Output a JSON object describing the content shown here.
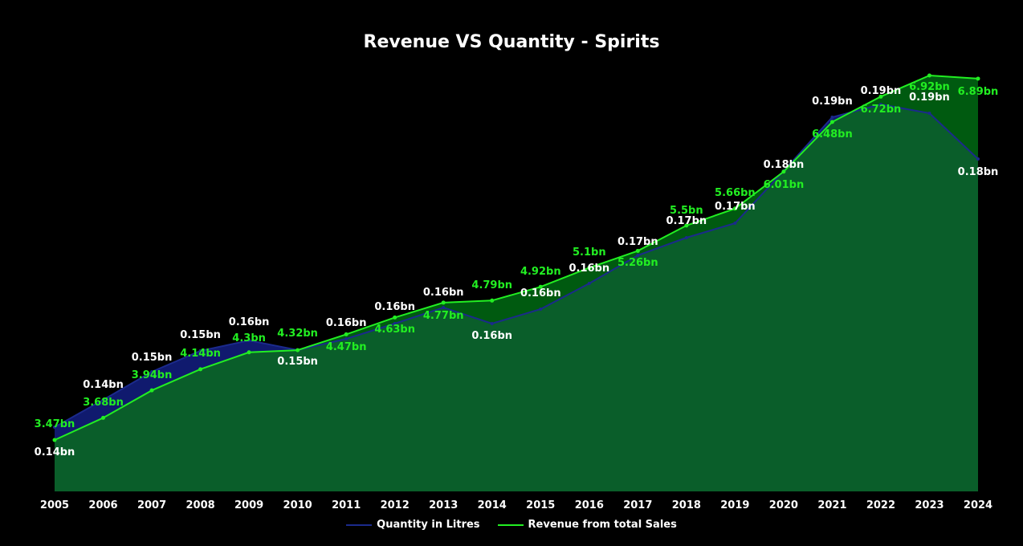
{
  "chart_data": {
    "type": "area",
    "title": "Revenue VS Quantity - Spirits",
    "xlabel": "",
    "ylabel": "",
    "categories": [
      "2005",
      "2006",
      "2007",
      "2008",
      "2009",
      "2010",
      "2011",
      "2012",
      "2013",
      "2014",
      "2015",
      "2016",
      "2017",
      "2018",
      "2019",
      "2020",
      "2021",
      "2022",
      "2023",
      "2024"
    ],
    "series": [
      {
        "name": "Quantity in Litres",
        "values": [
          0.14,
          0.14,
          0.15,
          0.15,
          0.16,
          0.15,
          0.16,
          0.16,
          0.16,
          0.16,
          0.16,
          0.16,
          0.17,
          0.17,
          0.17,
          0.18,
          0.19,
          0.19,
          0.19,
          0.18
        ],
        "labels": [
          "0.14bn",
          "0.14bn",
          "0.15bn",
          "0.15bn",
          "0.16bn",
          "0.15bn",
          "0.16bn",
          "0.16bn",
          "0.16bn",
          "0.16bn",
          "0.16bn",
          "0.16bn",
          "0.17bn",
          "0.17bn",
          "0.17bn",
          "0.18bn",
          "0.19bn",
          "0.19bn",
          "0.19bn",
          "0.18bn"
        ],
        "color": "#1b2a8c",
        "fill": "#101a6e",
        "label_color": "#ffffff"
      },
      {
        "name": "Revenue from total Sales",
        "values": [
          3.47,
          3.68,
          3.94,
          4.14,
          4.3,
          4.32,
          4.47,
          4.63,
          4.77,
          4.79,
          4.92,
          5.1,
          5.26,
          5.5,
          5.66,
          6.01,
          6.48,
          6.72,
          6.92,
          6.89
        ],
        "labels": [
          "3.47bn",
          "3.68bn",
          "3.94bn",
          "4.14bn",
          "4.3bn",
          "4.32bn",
          "4.47bn",
          "4.63bn",
          "4.77bn",
          "4.79bn",
          "4.92bn",
          "5.1bn",
          "5.26bn",
          "5.5bn",
          "5.66bn",
          "6.01bn",
          "6.48bn",
          "6.72bn",
          "6.92bn",
          "6.89bn"
        ],
        "color": "#22ee22",
        "fill": "#0a5e2a",
        "label_color": "#22ee22"
      }
    ],
    "grid": false,
    "legend_position": "bottom-center"
  }
}
